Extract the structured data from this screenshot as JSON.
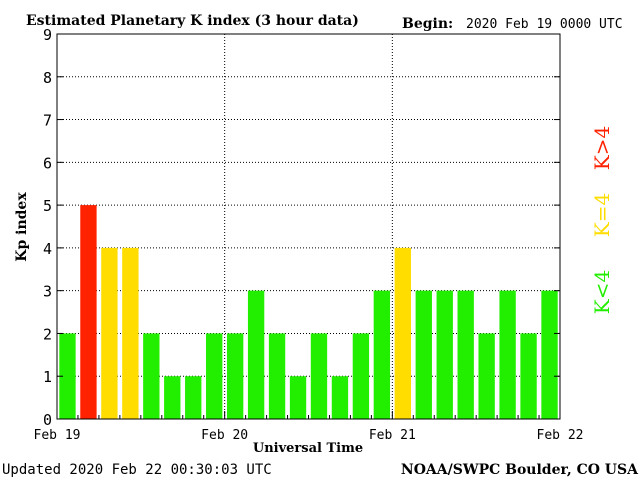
{
  "header": {
    "title": "Estimated Planetary K index (3 hour data)",
    "begin_label": "Begin:",
    "begin_value": "2020 Feb 19 0000 UTC"
  },
  "footer": {
    "updated": "Updated 2020 Feb 22 00:30:03 UTC",
    "source": "NOAA/SWPC Boulder, CO USA"
  },
  "legend": {
    "high": "K>4",
    "mid": "K=4",
    "low": "K<4"
  },
  "colors": {
    "high": "#ff2200",
    "mid": "#ffdd00",
    "low": "#22ee00"
  },
  "chart_data": {
    "type": "bar",
    "ylabel": "Kp index",
    "xlabel": "Universal Time",
    "ylim": [
      0,
      9
    ],
    "yticks": [
      "0",
      "1",
      "2",
      "3",
      "4",
      "5",
      "6",
      "7",
      "8",
      "9"
    ],
    "xticks": [
      "Feb 19",
      "Feb 20",
      "Feb 21",
      "Feb 22"
    ],
    "values": [
      2,
      5,
      4,
      4,
      2,
      1,
      1,
      2,
      2,
      3,
      2,
      1,
      2,
      1,
      2,
      3,
      4,
      3,
      3,
      3,
      2,
      3,
      2,
      3
    ],
    "grid": true
  }
}
